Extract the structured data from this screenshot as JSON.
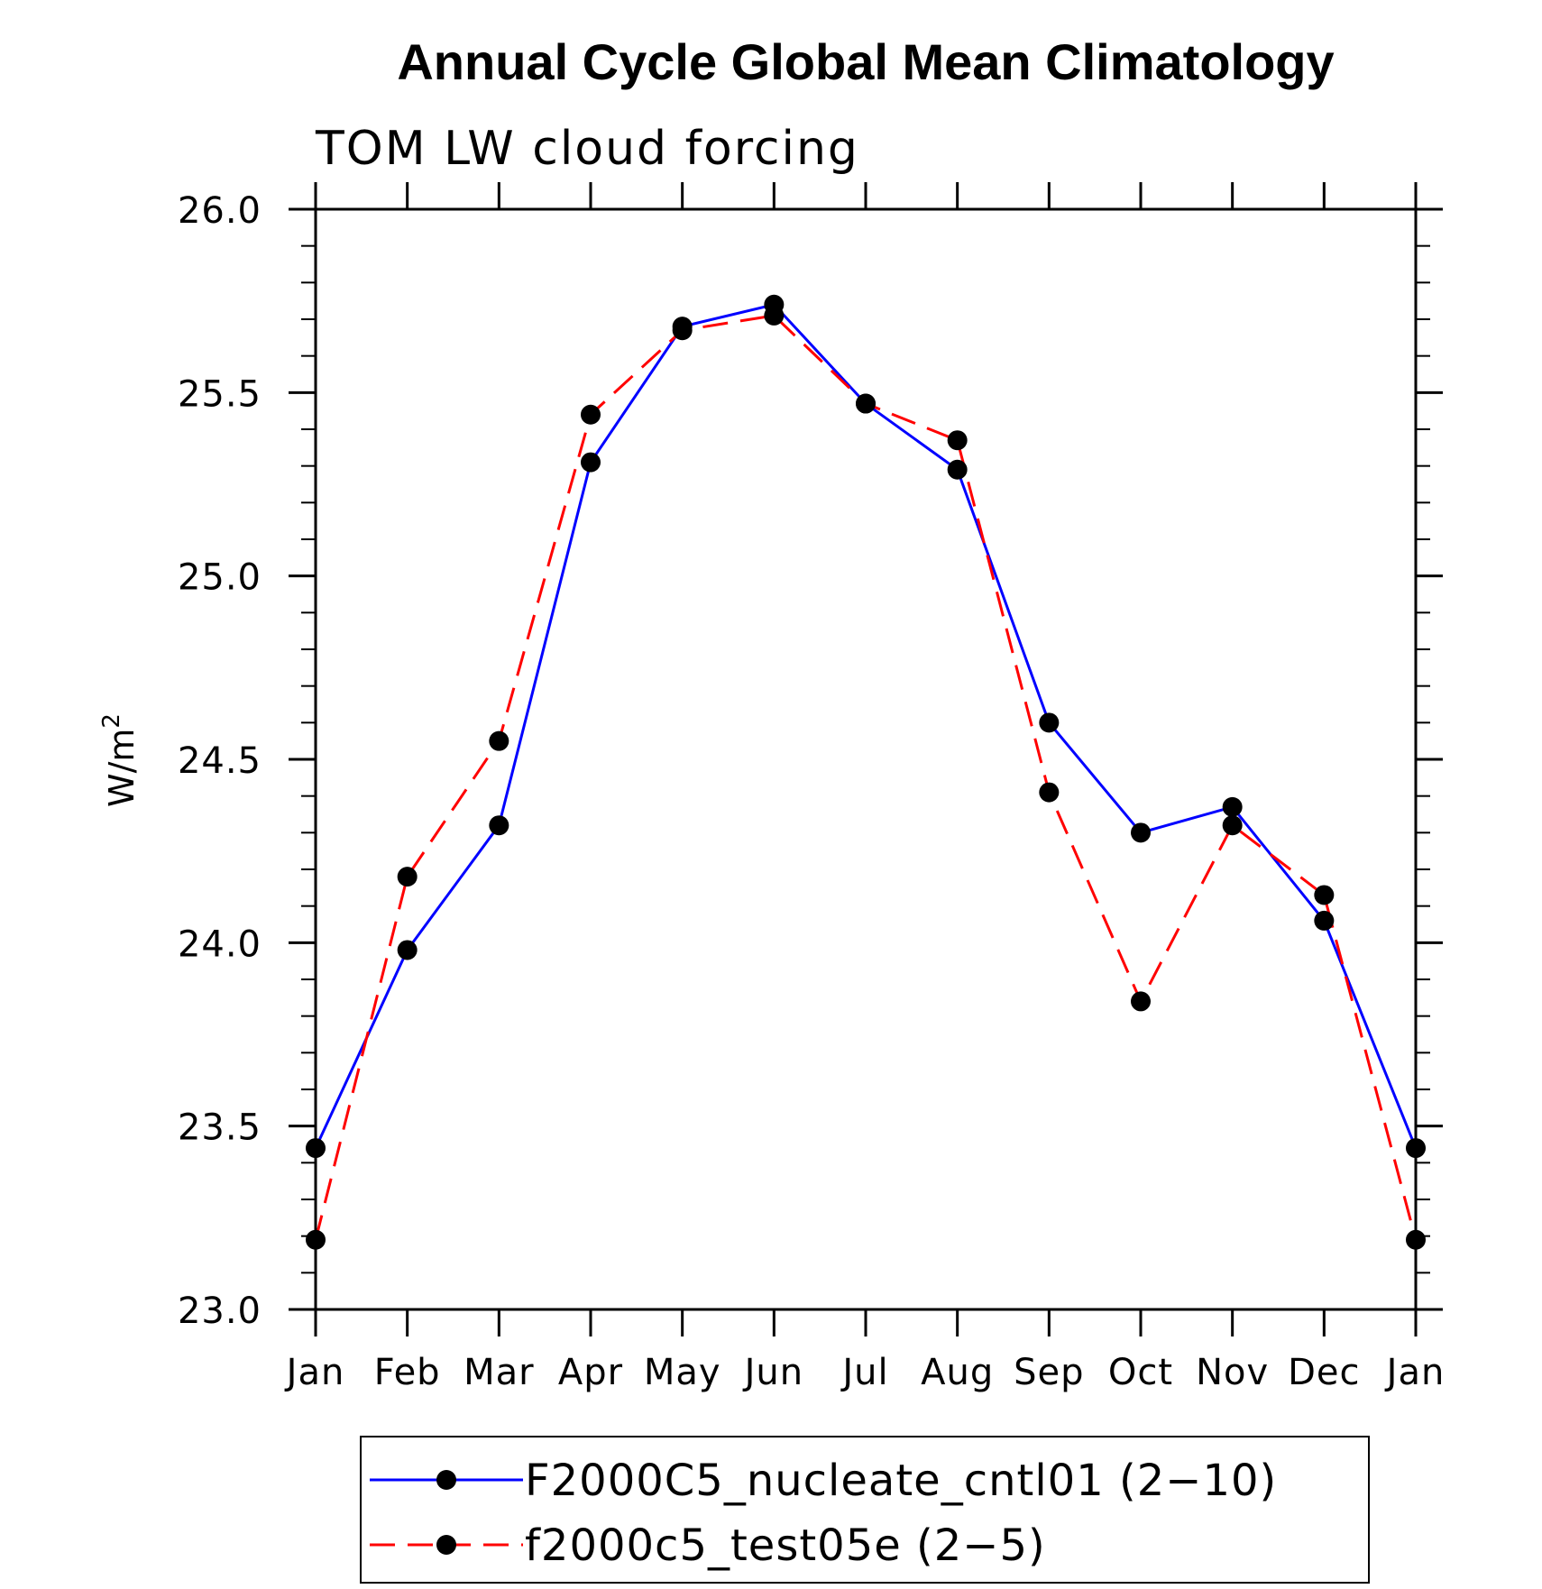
{
  "chart_data": {
    "type": "line",
    "title": "Annual Cycle Global Mean Climatology",
    "subtitle": "TOM LW cloud forcing",
    "xlabel": "",
    "ylabel": "W/m",
    "ylabel_superscript": "2",
    "categories": [
      "Jan",
      "Feb",
      "Mar",
      "Apr",
      "May",
      "Jun",
      "Jul",
      "Aug",
      "Sep",
      "Oct",
      "Nov",
      "Dec",
      "Jan"
    ],
    "ylim": [
      23.0,
      26.0
    ],
    "yticks": [
      "23.0",
      "23.5",
      "24.0",
      "24.5",
      "25.0",
      "25.5",
      "26.0"
    ],
    "grid": false,
    "legend_position": "bottom",
    "series": [
      {
        "name": "F2000C5_nucleate_cntl01 (2−10)",
        "color": "#0000ff",
        "dash": "solid",
        "values": [
          23.44,
          23.98,
          24.32,
          25.31,
          25.68,
          25.74,
          25.47,
          25.29,
          24.6,
          24.3,
          24.37,
          24.06,
          23.44
        ]
      },
      {
        "name": "f2000c5_test05e (2−5)",
        "color": "#ff0000",
        "dash": "dashed",
        "values": [
          23.19,
          24.18,
          24.55,
          25.44,
          25.67,
          25.71,
          25.47,
          25.37,
          24.41,
          23.84,
          24.32,
          24.13,
          23.19
        ]
      }
    ]
  }
}
